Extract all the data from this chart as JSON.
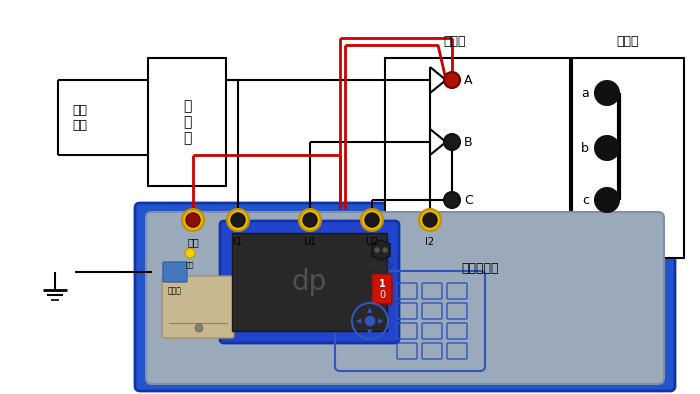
{
  "wire_black": "#000000",
  "wire_red": "#cc0000",
  "box_blue_outer": "#2255cc",
  "box_blue_mid": "#3366dd",
  "panel_gray": "#9aabbc",
  "terminal_yellow": "#e8b800",
  "terminal_yellow_ec": "#c09000",
  "terminal_red_fill": "#aa1100",
  "terminal_dark": "#1a1a1a",
  "label_jiayace": "加压侧",
  "label_duanjie": "短接侧",
  "label_beidut": "被试变压器",
  "label_transformer": "调\n压\n器",
  "label_power": "单相\n电源",
  "port_labels": [
    "输入",
    "I1",
    "U1",
    "U2",
    "I2"
  ],
  "sc_bar_color": "#111111",
  "keypad_outline": "#3355bb",
  "keypad_btn": "#8898b8",
  "lcd_border": "#2244bb",
  "lcd_screen": "#282828",
  "slot_fill": "#c8b890",
  "power_switch_fill": "#cc1100",
  "power_inlet_fill": "#222222"
}
